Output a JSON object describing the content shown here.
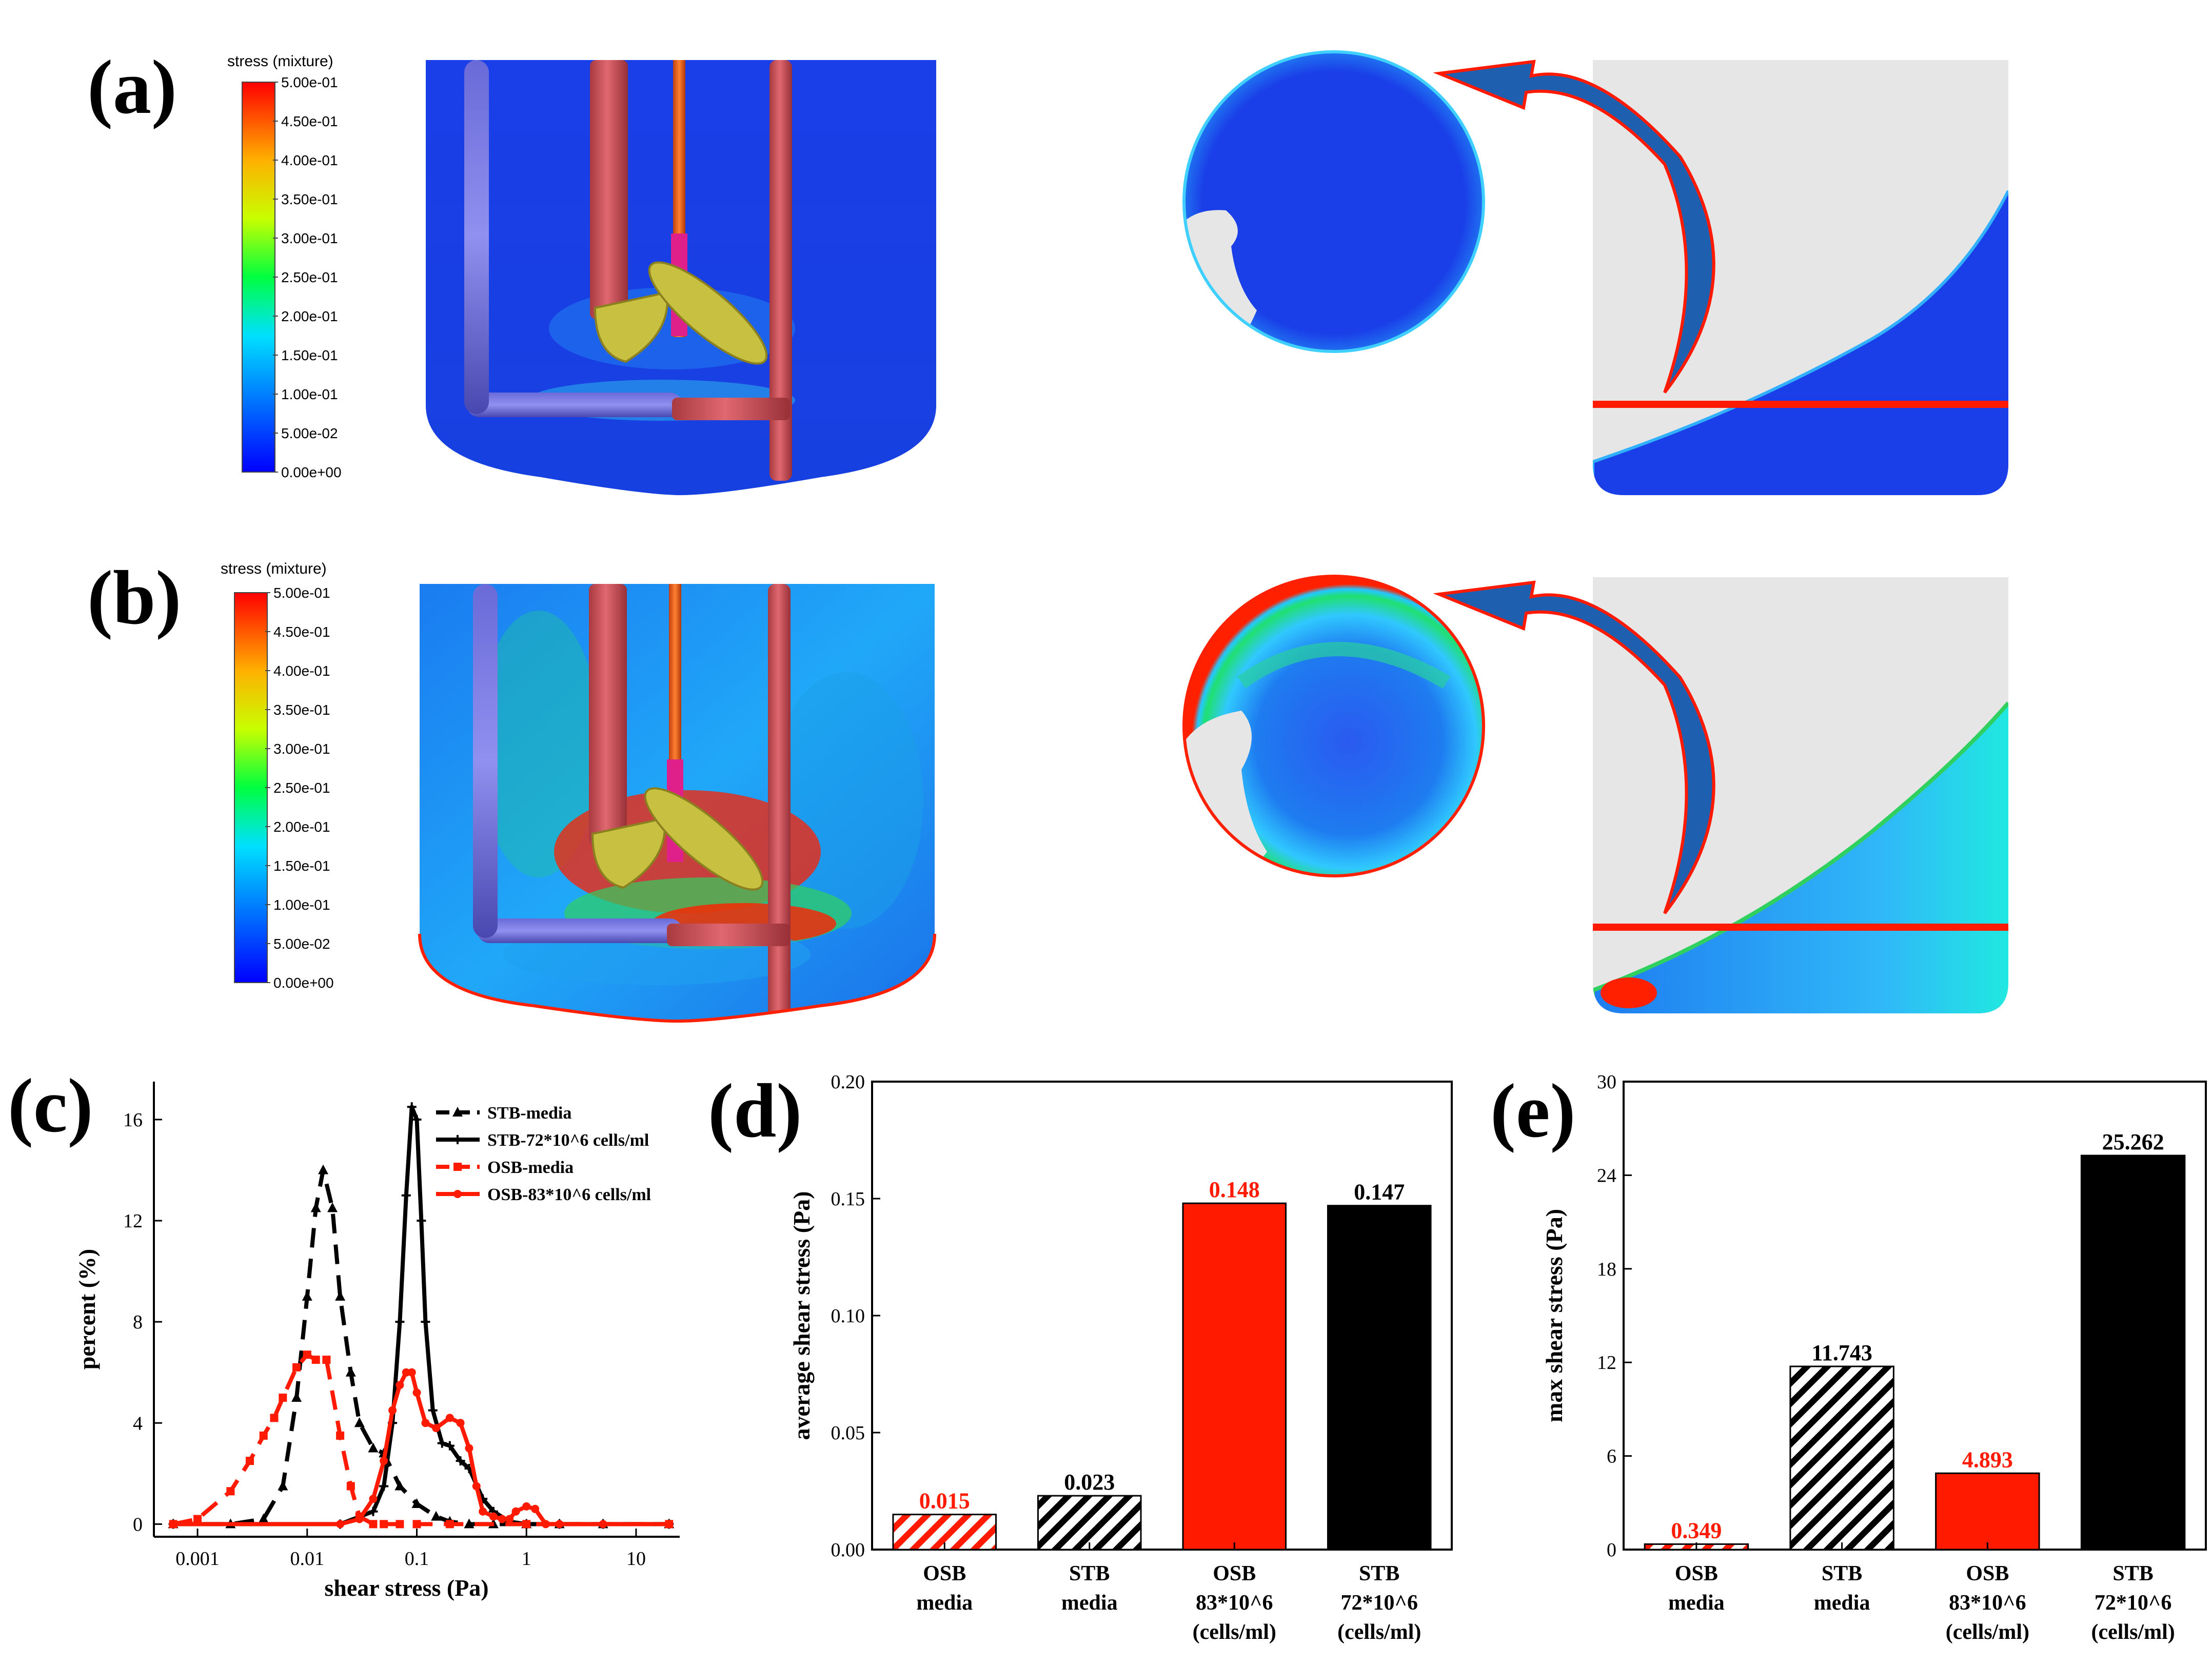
{
  "panels": {
    "a": {
      "label": "(a)",
      "colorbar_title": "stress (mixture)",
      "colorbar_ticks": [
        "5.00e-01",
        "4.50e-01",
        "4.00e-01",
        "3.50e-01",
        "3.00e-01",
        "2.50e-01",
        "2.00e-01",
        "1.50e-01",
        "1.00e-01",
        "5.00e-02",
        "0.00e+00"
      ]
    },
    "b": {
      "label": "(b)",
      "colorbar_title": "stress (mixture)",
      "colorbar_ticks": [
        "5.00e-01",
        "4.50e-01",
        "4.00e-01",
        "3.50e-01",
        "3.00e-01",
        "2.50e-01",
        "2.00e-01",
        "1.50e-01",
        "1.00e-01",
        "5.00e-02",
        "0.00e+00"
      ]
    },
    "c": {
      "label": "(c)"
    },
    "d": {
      "label": "(d)"
    },
    "e": {
      "label": "(e)"
    }
  },
  "colors": {
    "red": "#ff1a00",
    "black": "#000000",
    "arrow_blue": "#1f5fb0",
    "contour_blue": "#1a3ee8",
    "fluid_gray": "#e6e6e6"
  },
  "chart_data": [
    {
      "id": "c",
      "type": "line",
      "xscale": "log",
      "xlabel": "shear stress   (Pa)",
      "ylabel": "percent (%)",
      "xlim": [
        0.0004,
        25
      ],
      "ylim": [
        -0.5,
        17.5
      ],
      "xticks": [
        0.001,
        0.01,
        0.1,
        1,
        10
      ],
      "xtick_labels": [
        "0.001",
        "0.01",
        "0.1",
        "1",
        "10"
      ],
      "yticks": [
        0,
        4,
        8,
        12,
        16
      ],
      "ytick_labels": [
        "0",
        "4",
        "8",
        "12",
        "16"
      ],
      "legend_position": "top-right",
      "series": [
        {
          "name": "STB-media",
          "color": "#000000",
          "dash": "dashed",
          "marker": "triangle",
          "x": [
            0.0006,
            0.002,
            0.004,
            0.006,
            0.008,
            0.01,
            0.012,
            0.014,
            0.017,
            0.02,
            0.025,
            0.03,
            0.04,
            0.05,
            0.07,
            0.1,
            0.15,
            0.2,
            0.3,
            0.5,
            1,
            2,
            5,
            20
          ],
          "y": [
            0,
            0,
            0.2,
            1.5,
            5,
            9,
            12.5,
            14,
            12.5,
            9,
            6,
            4,
            3,
            2.8,
            1.5,
            0.8,
            0.3,
            0.1,
            0,
            0,
            0,
            0,
            0,
            0
          ]
        },
        {
          "name": "STB-72*10^6 cells/ml",
          "color": "#000000",
          "dash": "solid",
          "marker": "plus",
          "x": [
            0.0006,
            0.02,
            0.04,
            0.05,
            0.06,
            0.07,
            0.08,
            0.09,
            0.1,
            0.11,
            0.12,
            0.14,
            0.17,
            0.2,
            0.25,
            0.3,
            0.4,
            0.5,
            0.7,
            1,
            2,
            5,
            20
          ],
          "y": [
            0,
            0,
            0.5,
            1.5,
            4,
            8,
            13,
            16.5,
            16,
            12,
            8,
            4.5,
            3.2,
            3.1,
            2.5,
            2.2,
            1,
            0.5,
            0.1,
            0,
            0,
            0,
            0
          ]
        },
        {
          "name": "OSB-media",
          "color": "#ff1a00",
          "dash": "dashed",
          "marker": "square",
          "x": [
            0.0006,
            0.001,
            0.002,
            0.003,
            0.004,
            0.005,
            0.006,
            0.008,
            0.01,
            0.012,
            0.015,
            0.02,
            0.025,
            0.03,
            0.04,
            0.05,
            0.07,
            0.1,
            0.2,
            1,
            20
          ],
          "y": [
            0,
            0.2,
            1.3,
            2.5,
            3.5,
            4.2,
            5,
            6.2,
            6.7,
            6.5,
            6.5,
            3.5,
            1.5,
            0.3,
            0,
            0,
            0,
            0,
            0,
            0,
            0
          ]
        },
        {
          "name": "OSB-83*10^6 cells/ml",
          "color": "#ff1a00",
          "dash": "solid",
          "marker": "circle",
          "x": [
            0.0006,
            0.02,
            0.03,
            0.04,
            0.05,
            0.06,
            0.07,
            0.08,
            0.09,
            0.1,
            0.12,
            0.15,
            0.2,
            0.25,
            0.3,
            0.35,
            0.4,
            0.5,
            0.6,
            0.7,
            0.8,
            1,
            1.2,
            1.5,
            2,
            5,
            20
          ],
          "y": [
            0,
            0,
            0.2,
            1,
            2.5,
            4.5,
            5.5,
            6,
            6,
            5.2,
            4,
            3.8,
            4.2,
            4,
            3,
            1.5,
            0.5,
            0.3,
            0.2,
            0.2,
            0.5,
            0.7,
            0.6,
            0,
            0,
            0,
            0
          ]
        }
      ]
    },
    {
      "id": "d",
      "type": "bar",
      "ylabel": "average shear stress (Pa)",
      "ylim": [
        0,
        0.2
      ],
      "yticks": [
        0,
        0.05,
        0.1,
        0.15,
        0.2
      ],
      "ytick_labels": [
        "0.00",
        "0.05",
        "0.10",
        "0.15",
        "0.20"
      ],
      "categories": [
        [
          "OSB",
          "media"
        ],
        [
          "STB",
          "media"
        ],
        [
          "OSB",
          "83*10^6",
          "(cells/ml)"
        ],
        [
          "STB",
          "72*10^6",
          "(cells/ml)"
        ]
      ],
      "values": [
        0.015,
        0.023,
        0.148,
        0.147
      ],
      "value_labels": [
        "0.015",
        "0.023",
        "0.148",
        "0.147"
      ],
      "fills": [
        "hatch-red",
        "hatch-black",
        "solid-red",
        "solid-black"
      ],
      "label_colors": [
        "#ff1a00",
        "#000000",
        "#ff1a00",
        "#000000"
      ]
    },
    {
      "id": "e",
      "type": "bar",
      "ylabel": "max shear stress (Pa)",
      "ylim": [
        0,
        30
      ],
      "yticks": [
        0,
        6,
        12,
        18,
        24,
        30
      ],
      "ytick_labels": [
        "0",
        "6",
        "12",
        "18",
        "24",
        "30"
      ],
      "categories": [
        [
          "OSB",
          "media"
        ],
        [
          "STB",
          "media"
        ],
        [
          "OSB",
          "83*10^6",
          "(cells/ml)"
        ],
        [
          "STB",
          "72*10^6",
          "(cells/ml)"
        ]
      ],
      "values": [
        0.349,
        11.743,
        4.893,
        25.262
      ],
      "value_labels": [
        "0.349",
        "11.743",
        "4.893",
        "25.262"
      ],
      "fills": [
        "hatch-red",
        "hatch-black",
        "solid-red",
        "solid-black"
      ],
      "label_colors": [
        "#ff1a00",
        "#000000",
        "#ff1a00",
        "#000000"
      ]
    }
  ]
}
